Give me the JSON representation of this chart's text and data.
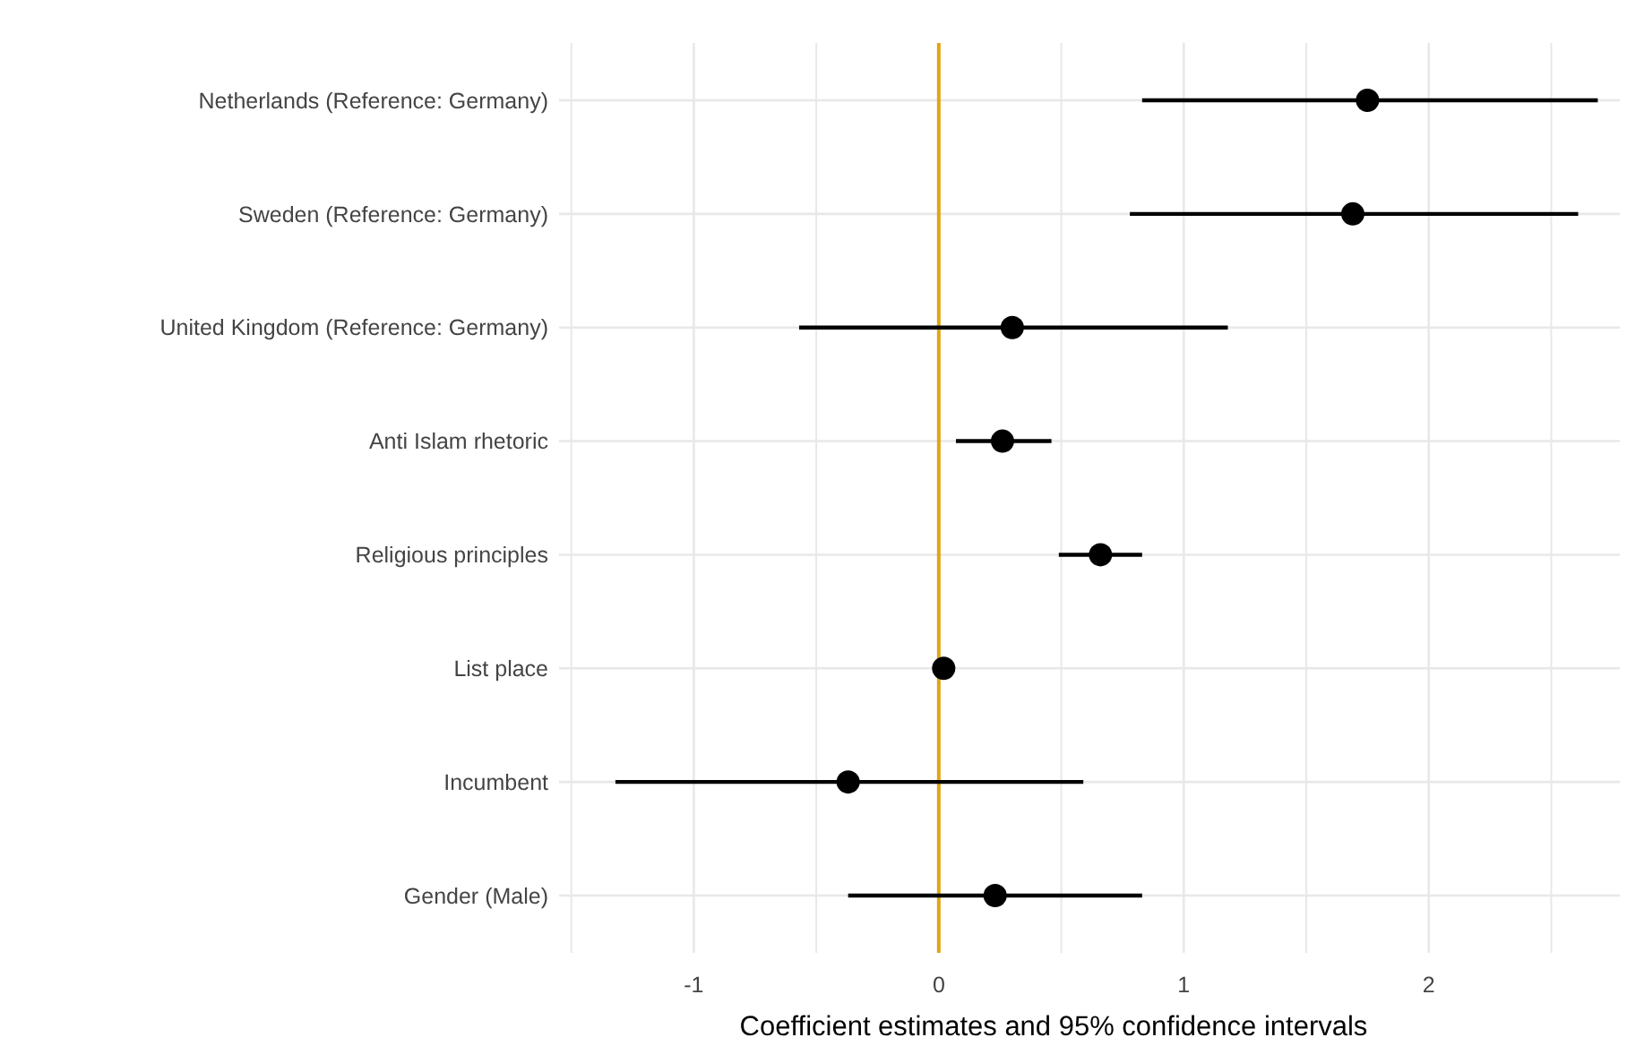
{
  "chart_data": {
    "type": "scatter",
    "orientation": "horizontal",
    "xlabel": "Coefficient estimates and 95% confidence intervals",
    "categories": [
      "Netherlands (Reference: Germany)",
      "Sweden (Reference: Germany)",
      "United Kingdom (Reference: Germany)",
      "Anti Islam rhetoric",
      "Religious principles",
      "List place",
      "Incumbent",
      "Gender (Male)"
    ],
    "series": [
      {
        "color": "#000000",
        "values": [
          1.75,
          1.69,
          0.3,
          0.26,
          0.66,
          0.02,
          -0.37,
          0.23
        ],
        "errors": [
          [
            0.83,
            2.69
          ],
          [
            0.78,
            2.61
          ],
          [
            -0.57,
            1.18
          ],
          [
            0.07,
            0.46
          ],
          [
            0.49,
            0.83
          ],
          null,
          [
            -1.32,
            0.59
          ],
          [
            -0.37,
            0.83
          ]
        ]
      }
    ],
    "xlim": [
      -1.55,
      2.78
    ],
    "xticks": [
      {
        "value": -1.5,
        "label": null
      },
      -1,
      {
        "value": -0.5,
        "label": null
      },
      0,
      {
        "value": 0.5,
        "label": null
      },
      1,
      {
        "value": 1.5,
        "label": null
      },
      2,
      {
        "value": 2.5,
        "label": null
      }
    ],
    "grid": true,
    "marker": "circle",
    "ref_lines": [
      {
        "axis": "x",
        "value": 0,
        "color": "#e0a516"
      }
    ]
  }
}
